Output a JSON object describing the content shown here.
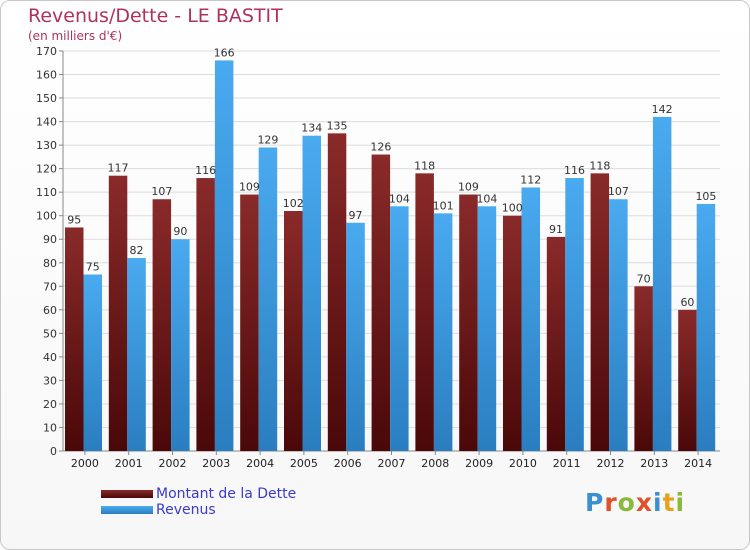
{
  "chart_data": {
    "type": "bar",
    "title": "Revenus/Dette - LE BASTIT",
    "subtitle": "(en milliers d'€)",
    "categories": [
      "2000",
      "2001",
      "2002",
      "2003",
      "2004",
      "2005",
      "2006",
      "2007",
      "2008",
      "2009",
      "2010",
      "2011",
      "2012",
      "2013",
      "2014"
    ],
    "series": [
      {
        "name": "Montant de la Dette",
        "values": [
          95,
          117,
          107,
          116,
          109,
          102,
          135,
          126,
          118,
          109,
          100,
          91,
          118,
          70,
          60
        ],
        "color": "#7a1a1a"
      },
      {
        "name": "Revenus",
        "values": [
          75,
          82,
          90,
          166,
          129,
          134,
          97,
          104,
          101,
          104,
          112,
          116,
          107,
          142,
          105
        ],
        "color": "#3a9ad9"
      }
    ],
    "yticks": [
      0,
      10,
      20,
      30,
      40,
      50,
      60,
      70,
      80,
      90,
      100,
      110,
      120,
      130,
      140,
      150,
      160,
      170
    ],
    "ylim": [
      0,
      170
    ],
    "grid": true,
    "legend_position": "bottom-left"
  },
  "branding": {
    "logo_letters": [
      "P",
      "r",
      "o",
      "x",
      "i",
      "t",
      "i"
    ],
    "logo_colors": [
      "#3a8fd0",
      "#e0502a",
      "#8ab83a",
      "#e0502a",
      "#3a8fd0",
      "#e8a020",
      "#8ab83a"
    ]
  }
}
